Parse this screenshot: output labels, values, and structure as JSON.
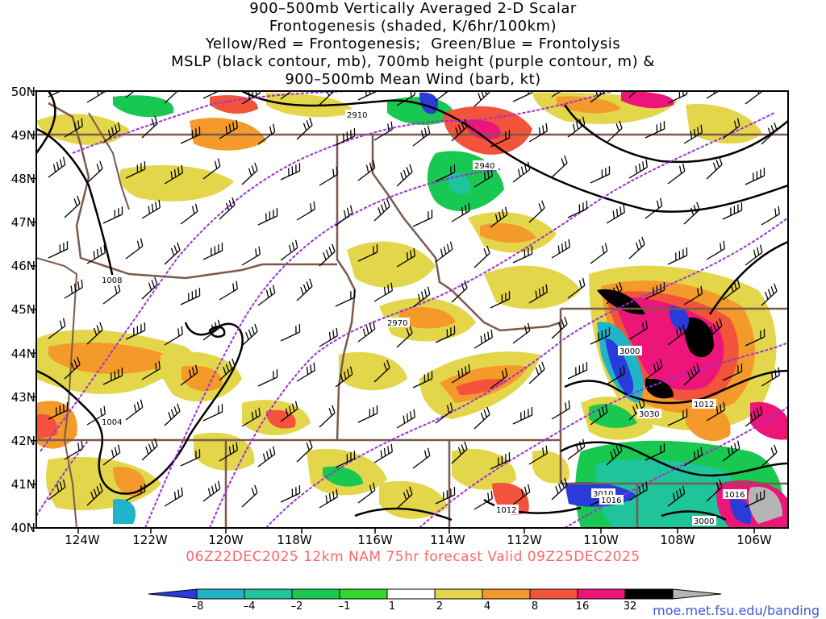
{
  "title": {
    "line1": "900–500mb Vertically Averaged 2-D Scalar",
    "line2": "Frontogenesis (shaded, K/6hr/100km)",
    "line3": "Yellow/Red = Frontogenesis;  Green/Blue = Frontolysis",
    "line4": "MSLP (black contour, mb), 700mb height (purple contour, m) &",
    "line5": "900–500mb Mean Wind (barb, kt)"
  },
  "lat_labels": [
    "50N",
    "49N",
    "48N",
    "47N",
    "46N",
    "45N",
    "44N",
    "43N",
    "42N",
    "41N",
    "40N"
  ],
  "lon_labels": [
    "124W",
    "122W",
    "120W",
    "118W",
    "116W",
    "114W",
    "112W",
    "110W",
    "108W",
    "106W"
  ],
  "contour_labels": {
    "h2910": "2910",
    "h2940": "2940",
    "h2970": "2970",
    "h3000": "3000",
    "h3030": "3030",
    "h3000b": "3000",
    "p1008": "1008",
    "p1004": "1004",
    "p1012a": "1012",
    "p1012b": "1012",
    "p1016a": "1016",
    "p1016b": "1016",
    "h3010": "3010"
  },
  "valid_text": "06Z22DEC2025 12km NAM 75hr forecast Valid 09Z25DEC2025",
  "colorbar": {
    "labels": [
      "–8",
      "–4",
      "–2",
      "–1",
      "1",
      "2",
      "4",
      "8",
      "16",
      "32"
    ],
    "colors": [
      "#2b3bd9",
      "#1fb4c8",
      "#20c49a",
      "#18c850",
      "#2fd82a",
      "#ffffff",
      "#e3d64a",
      "#f39a2a",
      "#f2533a",
      "#ec157a",
      "#000000",
      "#b5b5b5"
    ]
  },
  "colors": {
    "mslp": "#000000",
    "height": "#9b30d9",
    "borders": "#7a5a4a",
    "valid": "#ff6666"
  },
  "credit": "moe.met.fsu.edu/banding"
}
